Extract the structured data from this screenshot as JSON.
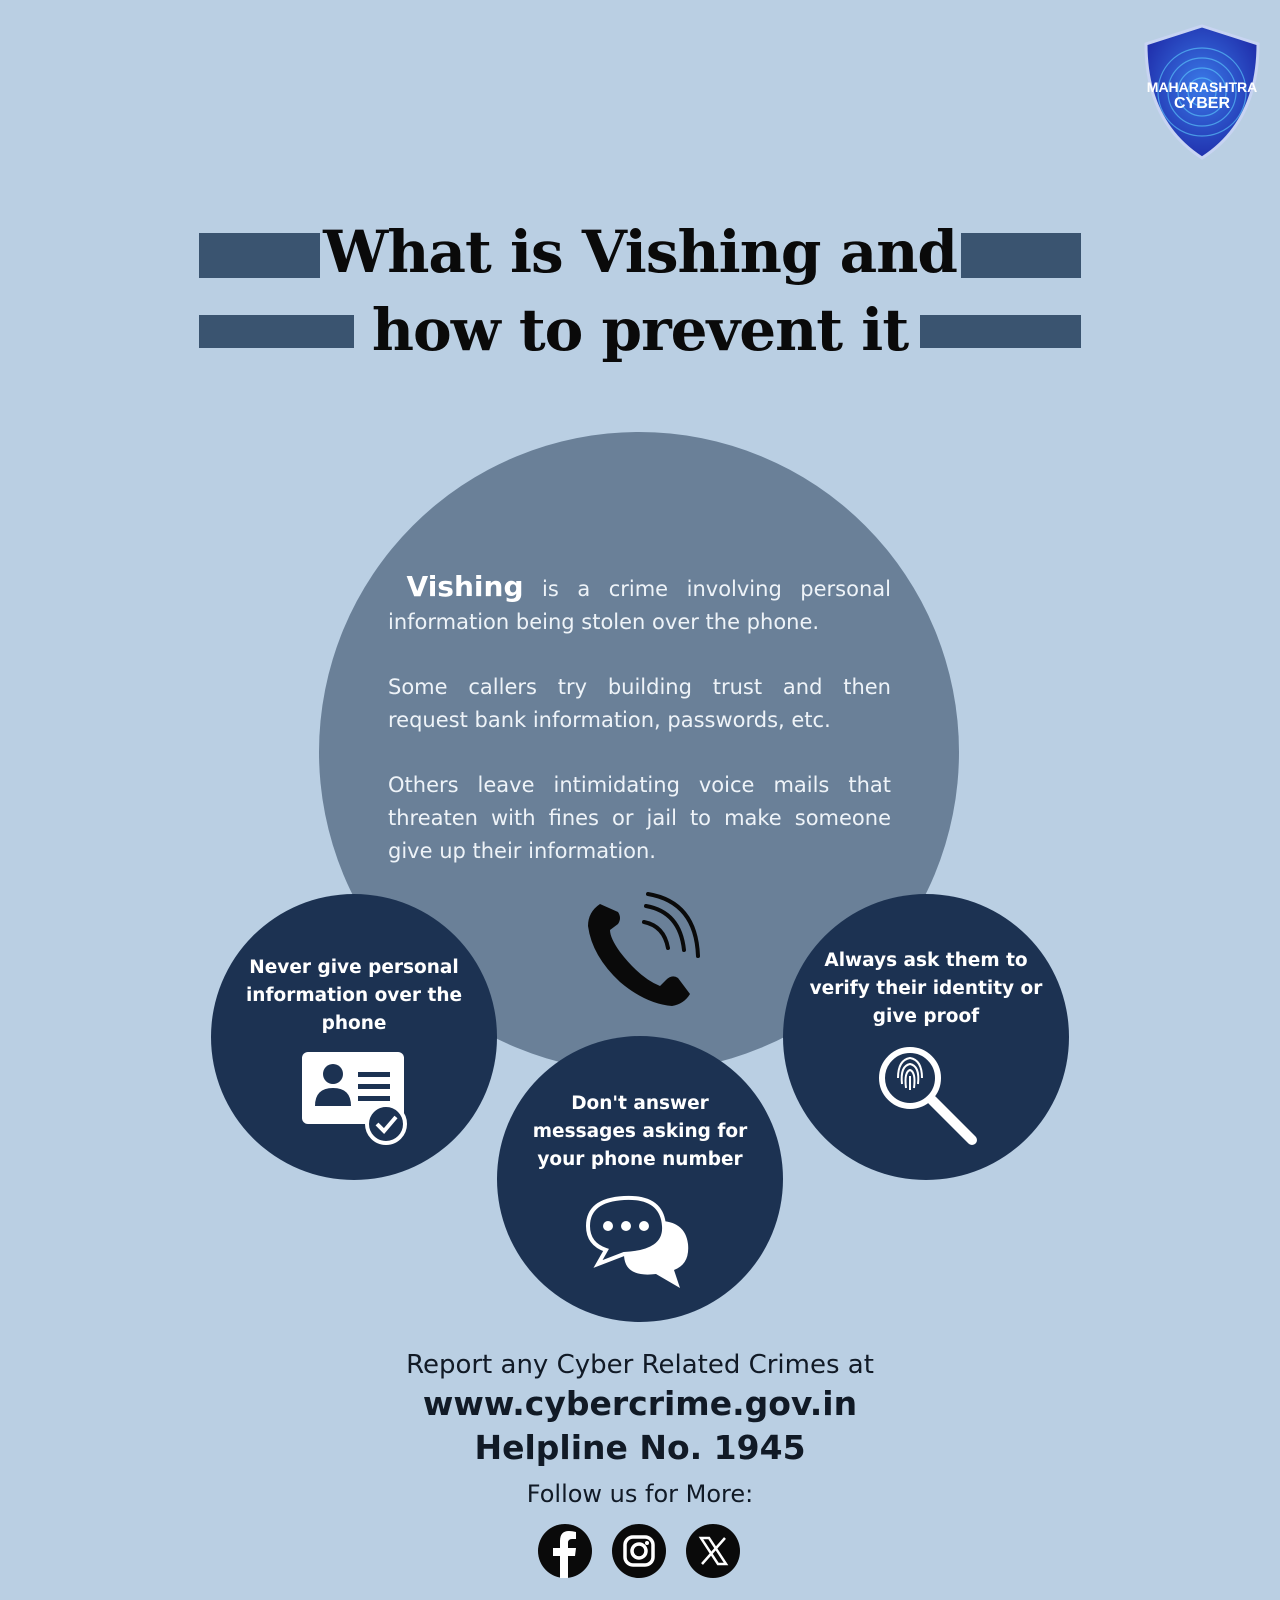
{
  "logo": {
    "line1": "MAHARASHTRA",
    "line2": "CYBER"
  },
  "title": {
    "line1": "What is Vishing and",
    "line2": "how to prevent it"
  },
  "intro": {
    "term": "Vishing",
    "p1_rest": "is a crime involving personal information being stolen over the phone.",
    "p2": "Some callers try building trust and then request bank information, passwords, etc.",
    "p3": "Others leave intimidating voice mails that threaten with fines or jail to make someone give up their information."
  },
  "tips": [
    {
      "text": "Never give personal information over the phone",
      "icon": "id-card-check-icon"
    },
    {
      "text": "Don't answer messages asking for your phone number",
      "icon": "chat-bubbles-icon"
    },
    {
      "text": "Always ask them to verify their identity or give proof",
      "icon": "fingerprint-magnifier-icon"
    }
  ],
  "footer": {
    "report": "Report any Cyber Related Crimes at",
    "url": "www.cybercrime.gov.in",
    "helpline": "Helpline No. 1945",
    "follow": "Follow us for More:"
  },
  "social": [
    "facebook-icon",
    "instagram-icon",
    "x-icon"
  ],
  "colors": {
    "background": "#bacfe3",
    "big_circle": "#6a8098",
    "dark_circle": "#1c3252",
    "bars": "#3a5470"
  }
}
